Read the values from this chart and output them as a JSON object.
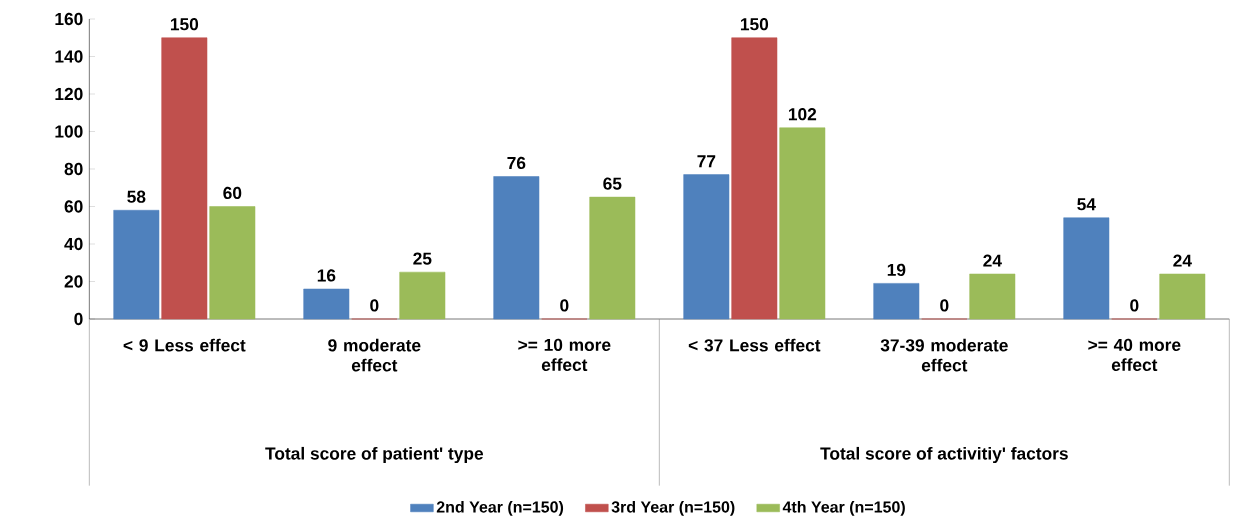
{
  "chart_data": {
    "type": "bar",
    "categories": [
      "< 9 Less effect",
      "9 moderate effect",
      ">= 10 more effect",
      "< 37 Less effect",
      "37-39 moderate effect",
      ">= 40 more effect"
    ],
    "series": [
      {
        "name": "2nd Year (n=150)",
        "color": "#4f81bd",
        "values": [
          58,
          16,
          76,
          77,
          19,
          54
        ]
      },
      {
        "name": "3rd Year (n=150)",
        "color": "#c0504d",
        "values": [
          150,
          0,
          0,
          150,
          0,
          0
        ]
      },
      {
        "name": "4th Year (n=150)",
        "color": "#9bbb59",
        "values": [
          60,
          25,
          65,
          102,
          24,
          24
        ]
      }
    ],
    "ylim": [
      0,
      160
    ],
    "yticks": [
      0,
      20,
      40,
      60,
      80,
      100,
      120,
      140,
      160
    ],
    "annotations": [
      "Total score of patient' type",
      "Total score of activitiy' factors"
    ],
    "data_labels": true,
    "grid": false,
    "legend": "bottom"
  }
}
